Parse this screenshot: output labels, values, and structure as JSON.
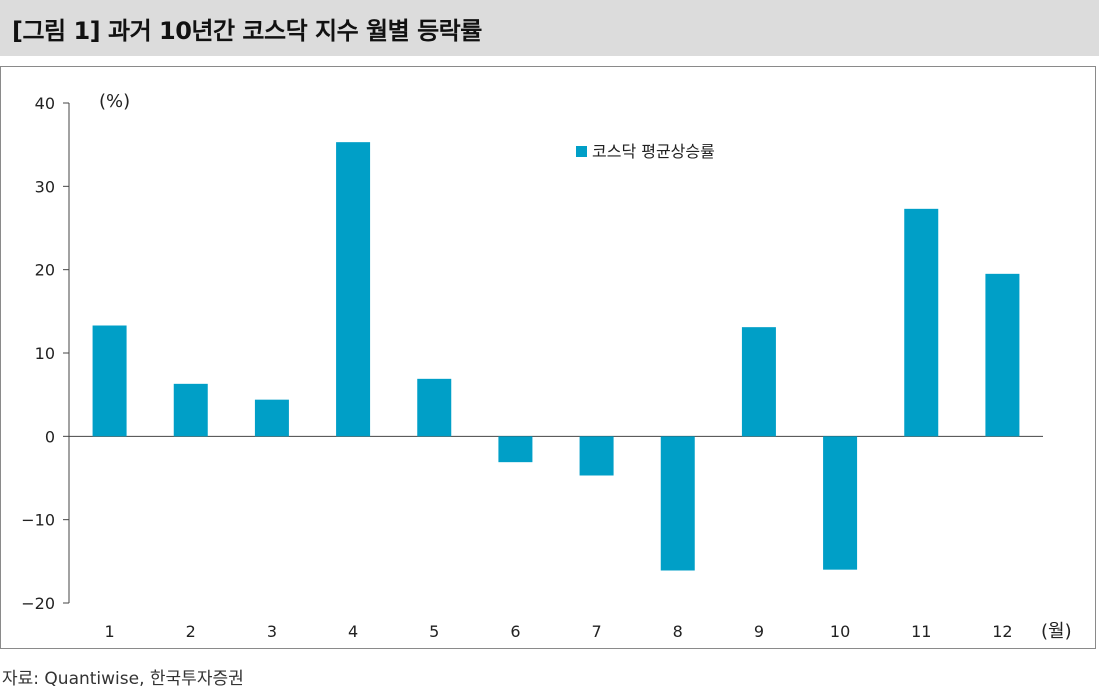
{
  "header": {
    "title": "[그림 1] 과거 10년간 코스닥 지수 월별 등락률"
  },
  "source": "자료: Quantiwise, 한국투자증권",
  "chart_data": {
    "type": "bar",
    "title": "[그림 1] 과거 10년간 코스닥 지수 월별 등락률",
    "ylabel": "(%)",
    "xlabel": "(월)",
    "categories": [
      "1",
      "2",
      "3",
      "4",
      "5",
      "6",
      "7",
      "8",
      "9",
      "10",
      "11",
      "12"
    ],
    "series": [
      {
        "name": "코스닥 평균상승률",
        "values": [
          13.3,
          6.3,
          4.4,
          35.3,
          6.9,
          -3.1,
          -4.7,
          -16.1,
          13.1,
          -16.0,
          27.3,
          19.5
        ]
      }
    ],
    "ylim": [
      -20,
      40
    ],
    "yticks": [
      "40",
      "30",
      "20",
      "10",
      "0",
      "−10",
      "−20"
    ],
    "ytick_values": [
      40,
      30,
      20,
      10,
      0,
      -10,
      -20
    ],
    "bar_color": "#009fc7",
    "grid": false,
    "legend_position": "top-right"
  }
}
